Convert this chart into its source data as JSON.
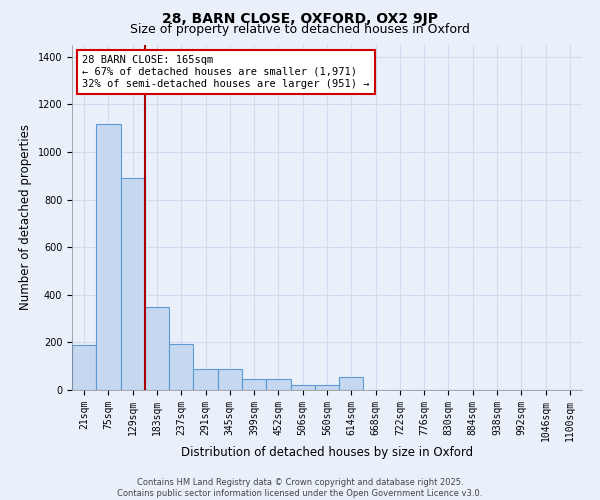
{
  "title_line1": "28, BARN CLOSE, OXFORD, OX2 9JP",
  "title_line2": "Size of property relative to detached houses in Oxford",
  "xlabel": "Distribution of detached houses by size in Oxford",
  "ylabel": "Number of detached properties",
  "bin_labels": [
    "21sqm",
    "75sqm",
    "129sqm",
    "183sqm",
    "237sqm",
    "291sqm",
    "345sqm",
    "399sqm",
    "452sqm",
    "506sqm",
    "560sqm",
    "614sqm",
    "668sqm",
    "722sqm",
    "776sqm",
    "830sqm",
    "884sqm",
    "938sqm",
    "992sqm",
    "1046sqm",
    "1100sqm"
  ],
  "bar_values": [
    190,
    1120,
    890,
    350,
    195,
    90,
    90,
    45,
    45,
    20,
    20,
    55,
    0,
    0,
    0,
    0,
    0,
    0,
    0,
    0,
    0
  ],
  "bar_color": "#c5d8f0",
  "bar_edge_color": "#5b9bd5",
  "background_color": "#eaf0fa",
  "grid_color": "#d0ddf0",
  "annotation_text": "28 BARN CLOSE: 165sqm\n← 67% of detached houses are smaller (1,971)\n32% of semi-detached houses are larger (951) →",
  "annotation_box_color": "#ffffff",
  "annotation_box_edge_color": "#cc0000",
  "vline_color": "#aa0000",
  "ylim": [
    0,
    1450
  ],
  "yticks": [
    0,
    200,
    400,
    600,
    800,
    1000,
    1200,
    1400
  ],
  "footer_line1": "Contains HM Land Registry data © Crown copyright and database right 2025.",
  "footer_line2": "Contains public sector information licensed under the Open Government Licence v3.0.",
  "title_fontsize": 10,
  "subtitle_fontsize": 9,
  "label_fontsize": 8.5,
  "tick_fontsize": 7,
  "annotation_fontsize": 7.5,
  "footer_fontsize": 6
}
